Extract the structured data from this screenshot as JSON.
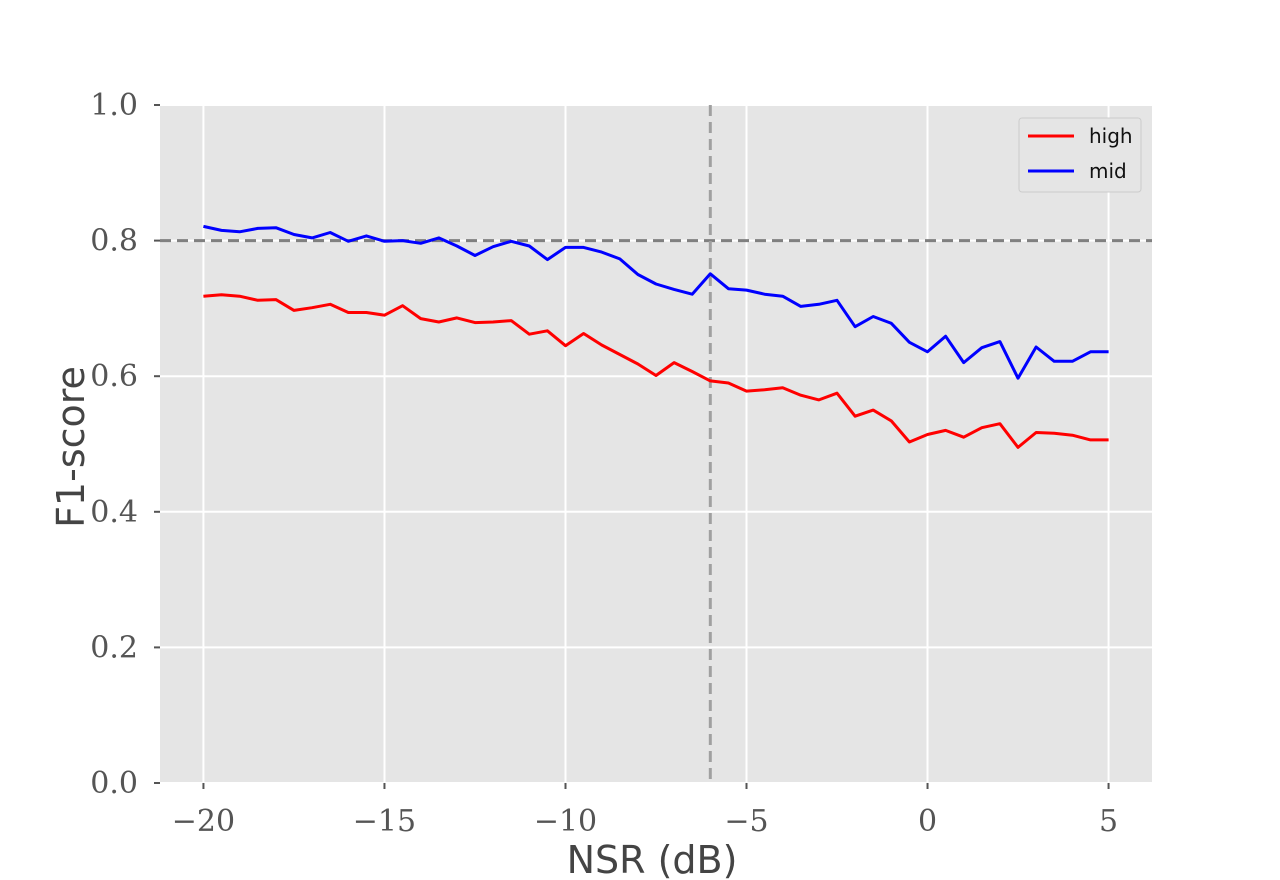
{
  "chart_data": {
    "type": "line",
    "xlabel": "NSR (dB)",
    "ylabel": "F1-score",
    "xlim": [
      -21.2,
      6.2
    ],
    "ylim": [
      0.0,
      1.0
    ],
    "xticks": [
      -20,
      -15,
      -10,
      -5,
      0,
      5
    ],
    "xtick_labels": [
      "−20",
      "−15",
      "−10",
      "−5",
      "0",
      "5"
    ],
    "yticks": [
      0.0,
      0.2,
      0.4,
      0.6,
      0.8,
      1.0
    ],
    "ytick_labels": [
      "0.0",
      "0.2",
      "0.4",
      "0.6",
      "0.8",
      "1.0"
    ],
    "grid": true,
    "background": "#e5e5e5",
    "legend_position": "top-right",
    "reference_lines": [
      {
        "orientation": "horizontal",
        "value": 0.8,
        "color": "#808080",
        "style": "dashed"
      },
      {
        "orientation": "vertical",
        "value": -6,
        "color": "#a0a0a0",
        "style": "dashed"
      }
    ],
    "x": [
      -20.0,
      -19.5,
      -19.0,
      -18.5,
      -18.0,
      -17.5,
      -17.0,
      -16.5,
      -16.0,
      -15.5,
      -15.0,
      -14.5,
      -14.0,
      -13.5,
      -13.0,
      -12.5,
      -12.0,
      -11.5,
      -11.0,
      -10.5,
      -10.0,
      -9.5,
      -9.0,
      -8.5,
      -8.0,
      -7.5,
      -7.0,
      -6.5,
      -6.0,
      -5.5,
      -5.0,
      -4.5,
      -4.0,
      -3.5,
      -3.0,
      -2.5,
      -2.0,
      -1.5,
      -1.0,
      -0.5,
      0.0,
      0.5,
      1.0,
      1.5,
      2.0,
      2.5,
      3.0,
      3.5,
      4.0,
      4.5,
      5.0
    ],
    "series": [
      {
        "name": "high",
        "color": "#ff0000",
        "values": [
          0.718,
          0.72,
          0.718,
          0.712,
          0.713,
          0.697,
          0.701,
          0.706,
          0.694,
          0.694,
          0.69,
          0.704,
          0.685,
          0.68,
          0.686,
          0.679,
          0.68,
          0.682,
          0.662,
          0.667,
          0.645,
          0.663,
          0.646,
          0.632,
          0.618,
          0.601,
          0.62,
          0.607,
          0.593,
          0.59,
          0.578,
          0.58,
          0.583,
          0.572,
          0.565,
          0.575,
          0.541,
          0.55,
          0.534,
          0.503,
          0.514,
          0.52,
          0.51,
          0.524,
          0.53,
          0.495,
          0.517,
          0.516,
          0.513,
          0.506,
          0.506
        ]
      },
      {
        "name": "mid",
        "color": "#0000ff",
        "values": [
          0.821,
          0.815,
          0.813,
          0.818,
          0.819,
          0.809,
          0.804,
          0.812,
          0.799,
          0.807,
          0.799,
          0.8,
          0.796,
          0.804,
          0.792,
          0.778,
          0.791,
          0.799,
          0.792,
          0.772,
          0.79,
          0.79,
          0.783,
          0.773,
          0.75,
          0.736,
          0.728,
          0.721,
          0.751,
          0.729,
          0.727,
          0.721,
          0.718,
          0.703,
          0.706,
          0.712,
          0.673,
          0.688,
          0.678,
          0.65,
          0.636,
          0.659,
          0.62,
          0.642,
          0.651,
          0.597,
          0.643,
          0.622,
          0.622,
          0.636,
          0.636
        ]
      }
    ]
  }
}
